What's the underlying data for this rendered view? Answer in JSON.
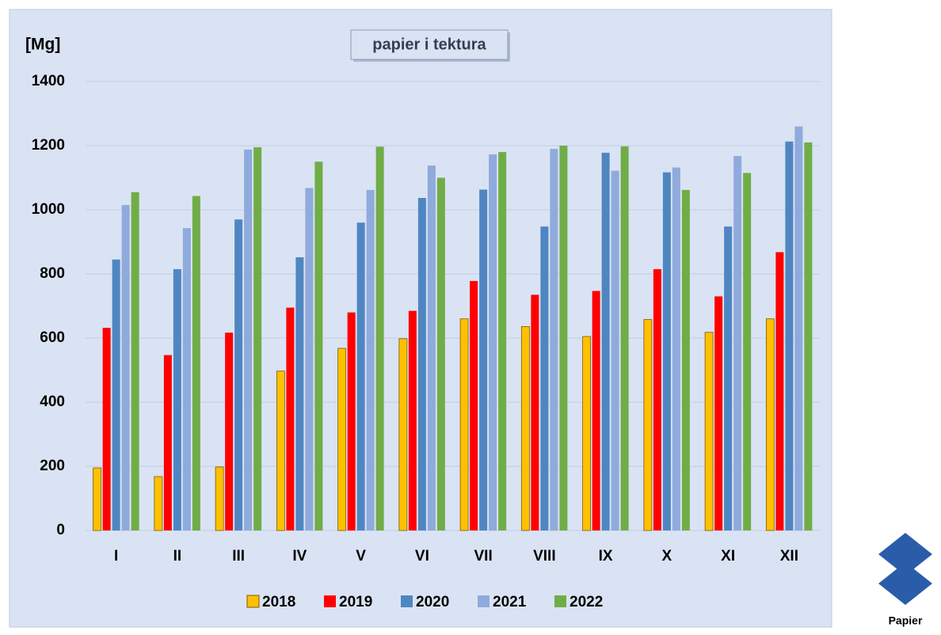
{
  "chart_data": {
    "type": "bar",
    "title": "papier i tektura",
    "ylabel": "[Mg]",
    "categories": [
      "I",
      "II",
      "III",
      "IV",
      "V",
      "VI",
      "VII",
      "VIII",
      "IX",
      "X",
      "XI",
      "XII"
    ],
    "series": [
      {
        "name": "2018",
        "color": "#ffc000",
        "values": [
          195,
          168,
          198,
          497,
          568,
          598,
          660,
          636,
          605,
          658,
          618,
          660
        ]
      },
      {
        "name": "2019",
        "color": "#ff0000",
        "values": [
          632,
          547,
          617,
          695,
          680,
          685,
          778,
          735,
          747,
          815,
          730,
          868
        ]
      },
      {
        "name": "2020",
        "color": "#4f86c2",
        "values": [
          845,
          815,
          970,
          852,
          960,
          1037,
          1063,
          948,
          1178,
          1117,
          948,
          1213
        ]
      },
      {
        "name": "2021",
        "color": "#8faadc",
        "values": [
          1015,
          943,
          1188,
          1068,
          1062,
          1138,
          1173,
          1190,
          1122,
          1132,
          1168,
          1260
        ]
      },
      {
        "name": "2022",
        "color": "#70ad47",
        "values": [
          1055,
          1043,
          1195,
          1150,
          1197,
          1100,
          1180,
          1200,
          1198,
          1062,
          1115,
          1210
        ]
      }
    ],
    "ylim": [
      0,
      1400
    ],
    "yticks": [
      0,
      200,
      400,
      600,
      800,
      1000,
      1200,
      1400
    ],
    "grid": true,
    "legend": "bottom"
  },
  "logo": {
    "label": "Papier"
  }
}
